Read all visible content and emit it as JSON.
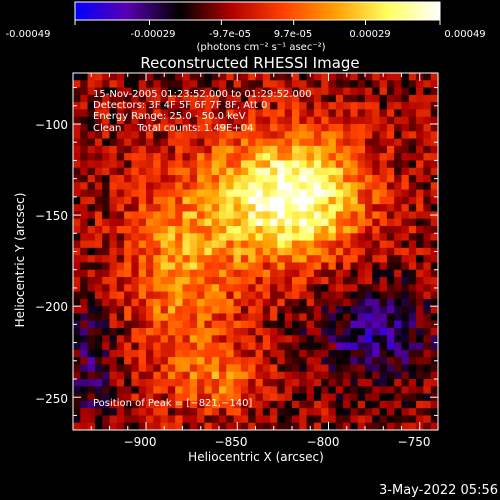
{
  "colorbar": {
    "ticks": [
      "-0.00049",
      "-0.00029",
      "-9.7e-05",
      "9.7e-05",
      "0.00029",
      "0.00049"
    ],
    "tick_values": [
      -0.00049,
      -0.00029,
      -9.7e-05,
      9.7e-05,
      0.00029,
      0.00049
    ],
    "range": [
      -0.00049,
      0.00049
    ],
    "unit_label": "(photons cm⁻² s⁻¹ asec⁻²)"
  },
  "chart_data": {
    "type": "heatmap",
    "title": "Reconstructed RHESSI Image",
    "xlabel": "Heliocentric X (arcsec)",
    "ylabel": "Heliocentric Y (arcsec)",
    "xlim": [
      -940,
      -740
    ],
    "ylim": [
      -268,
      -72
    ],
    "xticks": [
      -900,
      -850,
      -800,
      -750
    ],
    "yticks": [
      -100,
      -150,
      -200,
      -250
    ],
    "xtick_labels": [
      "−900",
      "−850",
      "−800",
      "−750"
    ],
    "ytick_labels": [
      "−100",
      "−150",
      "−200",
      "−250"
    ],
    "annotations": [
      "15-Nov-2005 01:23:52.000 to 01:29:52.000",
      "Detectors: 3F 4F 5F 6F 7F 8F, Att 0",
      "Energy Range: 25.0 - 50.0 keV",
      "Clean     Total counts: 1.49E+04"
    ],
    "peak_label": "Position of Peak = [−821,−140]",
    "peak": [
      -821,
      -140
    ],
    "colormap": [
      "#0000ff",
      "#5a00b0",
      "#000000",
      "#b00000",
      "#ff4000",
      "#ffa000",
      "#ffff60",
      "#ffffff"
    ]
  },
  "footer": {
    "date": "3-May-2022 05:56"
  }
}
